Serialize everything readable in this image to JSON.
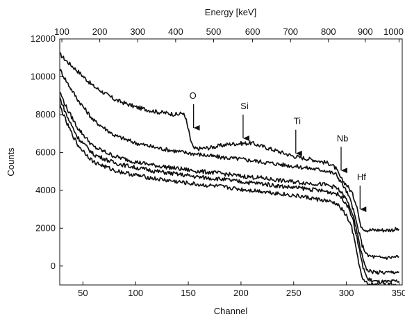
{
  "chart_data": {
    "type": "line",
    "title": "",
    "xlabel": "Channel",
    "ylabel": "Counts",
    "top_xlabel": "Energy [keV]",
    "xlim": [
      28,
      353
    ],
    "ylim": [
      -1000,
      12000
    ],
    "x_ticks": [
      50,
      100,
      150,
      200,
      250,
      300,
      350
    ],
    "y_ticks": [
      0,
      2000,
      4000,
      6000,
      8000,
      10000,
      12000
    ],
    "top_ticks": [
      {
        "label": "100",
        "channel": 30
      },
      {
        "label": "200",
        "channel": 66
      },
      {
        "label": "300",
        "channel": 102
      },
      {
        "label": "400",
        "channel": 138
      },
      {
        "label": "500",
        "channel": 174
      },
      {
        "label": "600",
        "channel": 211
      },
      {
        "label": "700",
        "channel": 247
      },
      {
        "label": "800",
        "channel": 283
      },
      {
        "label": "900",
        "channel": 318
      },
      {
        "label": "1000",
        "channel": 350
      }
    ],
    "grid": false,
    "line_color": "#111111",
    "series": [
      {
        "x": [
          28,
          35,
          45,
          60,
          80,
          100,
          120,
          140,
          145,
          148,
          152,
          155,
          160,
          170,
          190,
          210,
          230,
          250,
          270,
          285,
          290,
          295,
          300,
          305,
          310,
          313,
          317,
          320,
          330,
          340,
          350
        ],
        "y": [
          11200,
          10800,
          10300,
          9500,
          8800,
          8400,
          8150,
          8000,
          8100,
          7700,
          6700,
          6200,
          6200,
          6250,
          6450,
          6500,
          6150,
          5800,
          5600,
          5400,
          5150,
          4600,
          4300,
          3900,
          3200,
          2200,
          1950,
          1900,
          1900,
          1900,
          1950
        ]
      },
      {
        "x": [
          28,
          35,
          45,
          60,
          80,
          100,
          120,
          140,
          160,
          180,
          200,
          220,
          240,
          260,
          280,
          290,
          295,
          300,
          305,
          310,
          315,
          320,
          330,
          340,
          350
        ],
        "y": [
          10400,
          9700,
          8800,
          7700,
          6900,
          6500,
          6250,
          6050,
          5900,
          5750,
          5650,
          5500,
          5350,
          5200,
          5050,
          4850,
          4450,
          3950,
          3300,
          2200,
          1100,
          550,
          450,
          450,
          500
        ]
      },
      {
        "x": [
          28,
          35,
          45,
          60,
          80,
          100,
          120,
          140,
          160,
          180,
          200,
          220,
          240,
          260,
          280,
          290,
          295,
          300,
          305,
          310,
          315,
          320,
          330,
          340,
          350
        ],
        "y": [
          9200,
          8300,
          7300,
          6300,
          5800,
          5500,
          5300,
          5150,
          5000,
          4900,
          4750,
          4650,
          4500,
          4400,
          4300,
          4150,
          3900,
          3500,
          2900,
          1800,
          500,
          -250,
          -350,
          -350,
          -300
        ]
      },
      {
        "x": [
          28,
          35,
          45,
          60,
          80,
          100,
          120,
          140,
          160,
          180,
          200,
          220,
          240,
          260,
          280,
          290,
          295,
          300,
          305,
          310,
          315,
          320,
          330,
          340,
          350
        ],
        "y": [
          8900,
          7900,
          6800,
          5900,
          5450,
          5200,
          5000,
          4850,
          4700,
          4600,
          4450,
          4350,
          4200,
          4100,
          3950,
          3850,
          3650,
          3300,
          2700,
          1500,
          100,
          -700,
          -850,
          -850,
          -800
        ]
      },
      {
        "x": [
          28,
          35,
          45,
          60,
          80,
          100,
          120,
          140,
          160,
          180,
          200,
          220,
          240,
          260,
          280,
          290,
          295,
          300,
          305,
          310,
          315,
          320,
          330,
          340,
          350
        ],
        "y": [
          8500,
          7500,
          6400,
          5500,
          5050,
          4800,
          4600,
          4450,
          4300,
          4200,
          4050,
          3950,
          3800,
          3650,
          3450,
          3300,
          3050,
          2650,
          2050,
          700,
          -700,
          -950,
          -1000,
          -1000,
          -1000
        ]
      }
    ],
    "annotations": [
      {
        "label": "O",
        "x": 155,
        "y_head": 7300
      },
      {
        "label": "Si",
        "x": 202,
        "y_head": 6750
      },
      {
        "label": "Ti",
        "x": 252,
        "y_head": 5950
      },
      {
        "label": "Nb",
        "x": 295,
        "y_head": 5050
      },
      {
        "label": "Hf",
        "x": 313,
        "y_head": 3000
      }
    ]
  }
}
